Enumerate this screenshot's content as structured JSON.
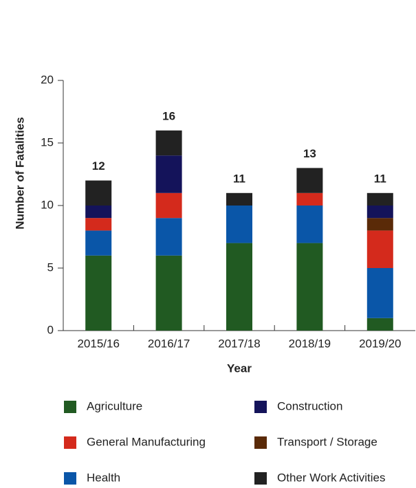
{
  "chart_data": {
    "type": "stacked_bar",
    "xlabel": "Year",
    "ylabel": "Number of Fatalities",
    "categories": [
      "2015/16",
      "2016/17",
      "2017/18",
      "2018/19",
      "2019/20"
    ],
    "series": [
      {
        "name": "Agriculture",
        "color": "#215a22",
        "values": [
          6,
          6,
          7,
          7,
          1
        ]
      },
      {
        "name": "Health",
        "color": "#0a56a8",
        "values": [
          2,
          3,
          3,
          3,
          4
        ]
      },
      {
        "name": "General Manufacturing",
        "color": "#d42a1c",
        "values": [
          1,
          2,
          0,
          1,
          3
        ]
      },
      {
        "name": "Transport / Storage",
        "color": "#5a2a08",
        "values": [
          0,
          0,
          0,
          0,
          1
        ]
      },
      {
        "name": "Construction",
        "color": "#14135a",
        "values": [
          1,
          3,
          0,
          0,
          1
        ]
      },
      {
        "name": "Other Work Activities",
        "color": "#222222",
        "values": [
          2,
          2,
          1,
          2,
          1
        ]
      }
    ],
    "totals": [
      12,
      16,
      11,
      13,
      11
    ],
    "ylim": [
      0,
      20
    ],
    "yticks": [
      0,
      5,
      10,
      15,
      20
    ]
  }
}
